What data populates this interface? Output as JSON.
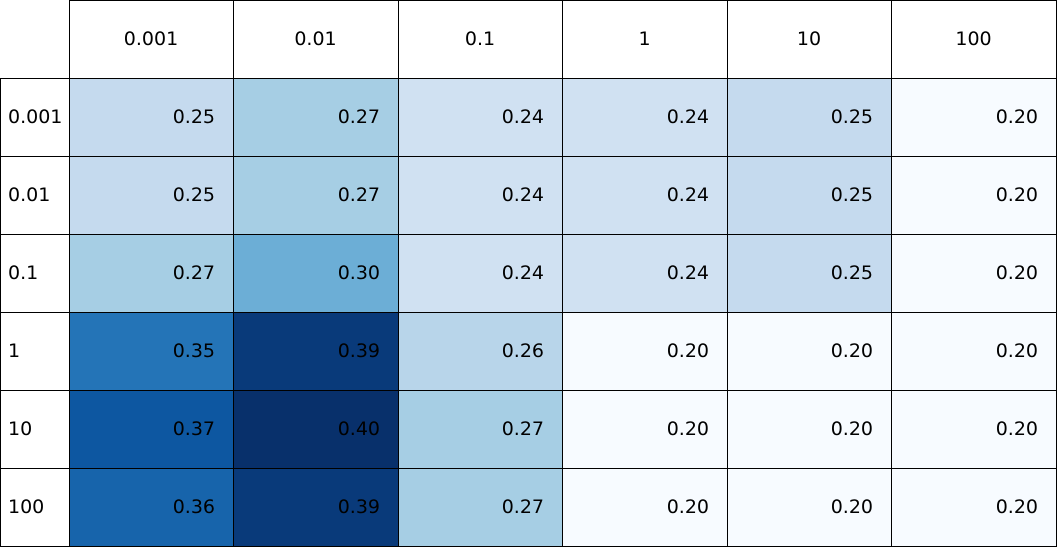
{
  "chart_data": {
    "type": "heatmap",
    "colormap": "Blues",
    "columns": [
      "0.001",
      "0.01",
      "0.1",
      "1",
      "10",
      "100"
    ],
    "rows": [
      "0.001",
      "0.01",
      "0.1",
      "1",
      "10",
      "100"
    ],
    "values": [
      [
        "0.25",
        "0.27",
        "0.24",
        "0.24",
        "0.25",
        "0.20"
      ],
      [
        "0.25",
        "0.27",
        "0.24",
        "0.24",
        "0.25",
        "0.20"
      ],
      [
        "0.27",
        "0.30",
        "0.24",
        "0.24",
        "0.25",
        "0.20"
      ],
      [
        "0.35",
        "0.39",
        "0.26",
        "0.20",
        "0.20",
        "0.20"
      ],
      [
        "0.37",
        "0.40",
        "0.27",
        "0.20",
        "0.20",
        "0.20"
      ],
      [
        "0.36",
        "0.39",
        "0.27",
        "0.20",
        "0.20",
        "0.20"
      ]
    ],
    "color_scale": [
      {
        "value": 0.2,
        "color": "#f7fbff"
      },
      {
        "value": 0.24,
        "color": "#d0e1f2"
      },
      {
        "value": 0.25,
        "color": "#c5daee"
      },
      {
        "value": 0.26,
        "color": "#b8d5ea"
      },
      {
        "value": 0.27,
        "color": "#a6cee4"
      },
      {
        "value": 0.3,
        "color": "#6caed6"
      },
      {
        "value": 0.35,
        "color": "#2474b7"
      },
      {
        "value": 0.36,
        "color": "#1764ab"
      },
      {
        "value": 0.37,
        "color": "#0d57a1"
      },
      {
        "value": 0.39,
        "color": "#093a7a"
      },
      {
        "value": 0.4,
        "color": "#08306b"
      }
    ]
  }
}
